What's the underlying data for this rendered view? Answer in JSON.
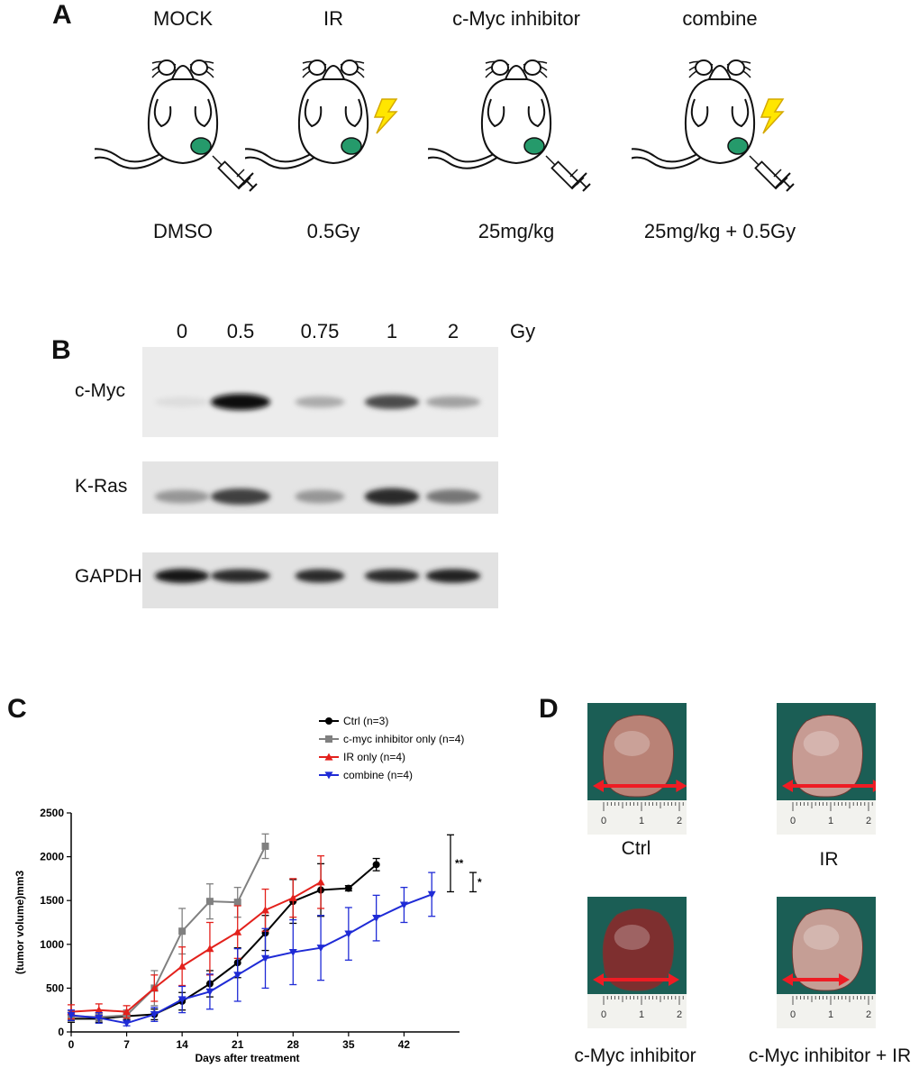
{
  "panelA": {
    "letter": "A",
    "groups": [
      {
        "title": "MOCK",
        "dose": "DMSO",
        "ir": false,
        "injection": true
      },
      {
        "title": "IR",
        "dose": "0.5Gy",
        "ir": true,
        "injection": false
      },
      {
        "title": "c-Myc inhibitor",
        "dose": "25mg/kg",
        "ir": false,
        "injection": true
      },
      {
        "title": "combine",
        "dose": "25mg/kg + 0.5Gy",
        "ir": true,
        "injection": true
      }
    ]
  },
  "panelB": {
    "letter": "B",
    "doses": [
      "0",
      "0.5",
      "0.75",
      "1",
      "2"
    ],
    "unit": "Gy",
    "blots": [
      {
        "label": "c-Myc",
        "intensities": [
          0.02,
          1.0,
          0.25,
          0.7,
          0.3
        ]
      },
      {
        "label": "K-Ras",
        "intensities": [
          0.35,
          0.75,
          0.35,
          0.85,
          0.5
        ]
      },
      {
        "label": "GAPDH",
        "intensities": [
          0.95,
          0.85,
          0.85,
          0.85,
          0.9
        ]
      }
    ]
  },
  "panelC": {
    "letter": "C",
    "chart_data": {
      "type": "line",
      "xlabel": "Days after treatment",
      "ylabel": "(tumor volume)mm3",
      "xlim": [
        0,
        49
      ],
      "ylim": [
        0,
        2500
      ],
      "xticks": [
        0,
        7,
        14,
        21,
        28,
        35,
        42
      ],
      "yticks": [
        0,
        500,
        1000,
        1500,
        2000,
        2500
      ],
      "legend_position": "top-right",
      "series": [
        {
          "name": "Ctrl (n=3)",
          "color": "#000000",
          "marker": "circle",
          "x": [
            0,
            3.5,
            7,
            10.5,
            14,
            17.5,
            21,
            24.5,
            28,
            31.5,
            35,
            38.5
          ],
          "y": [
            150,
            150,
            180,
            200,
            350,
            550,
            790,
            1130,
            1490,
            1620,
            1640,
            1910
          ],
          "err": [
            40,
            40,
            40,
            60,
            100,
            150,
            170,
            200,
            250,
            300,
            30,
            70
          ]
        },
        {
          "name": "c-myc inhibitor only (n=4)",
          "color": "#808080",
          "marker": "square",
          "x": [
            0,
            3.5,
            7,
            10.5,
            14,
            17.5,
            21,
            24.5
          ],
          "y": [
            180,
            170,
            190,
            500,
            1150,
            1490,
            1480,
            2120
          ],
          "err": [
            60,
            50,
            60,
            200,
            260,
            200,
            170,
            140
          ]
        },
        {
          "name": "IR only  (n=4)",
          "color": "#e3211c",
          "marker": "triangle-up",
          "x": [
            0,
            3.5,
            7,
            10.5,
            14,
            17.5,
            21,
            24.5,
            28,
            31.5
          ],
          "y": [
            230,
            250,
            230,
            500,
            750,
            950,
            1140,
            1390,
            1530,
            1710
          ],
          "err": [
            80,
            70,
            70,
            150,
            220,
            300,
            300,
            240,
            220,
            300
          ]
        },
        {
          "name": "combine (n=4)",
          "color": "#1f2bd6",
          "marker": "triangle-down",
          "x": [
            0,
            3.5,
            7,
            10.5,
            14,
            17.5,
            21,
            24.5,
            28,
            31.5,
            35,
            38.5,
            42,
            45.5
          ],
          "y": [
            190,
            160,
            100,
            200,
            370,
            460,
            650,
            840,
            910,
            960,
            1120,
            1300,
            1450,
            1570
          ],
          "err": [
            60,
            60,
            30,
            80,
            150,
            200,
            300,
            340,
            370,
            370,
            300,
            260,
            200,
            250
          ]
        }
      ],
      "annotations": [
        {
          "text": "**",
          "y_range": [
            1600,
            2250
          ]
        },
        {
          "text": "*",
          "y_range": [
            1600,
            1820
          ]
        }
      ]
    }
  },
  "panelD": {
    "letter": "D",
    "photos": [
      {
        "caption": "Ctrl",
        "tissue": "#b98276",
        "arrow_span": [
          0,
          2.2
        ]
      },
      {
        "caption": "IR",
        "tissue": "#c79b93",
        "arrow_span": [
          0,
          2.4
        ]
      },
      {
        "caption": "c-Myc inhibitor",
        "tissue": "#7e2f2f",
        "arrow_span": [
          0,
          2.0
        ]
      },
      {
        "caption": "c-Myc inhibitor + IR",
        "tissue": "#c59e95",
        "arrow_span": [
          0,
          1.5
        ]
      }
    ],
    "ruler_ticks": [
      "0",
      "1",
      "2"
    ],
    "colors": {
      "background": "#1b5e55",
      "arrow": "#ee1c24",
      "ruler": "#f2f2ee"
    }
  }
}
